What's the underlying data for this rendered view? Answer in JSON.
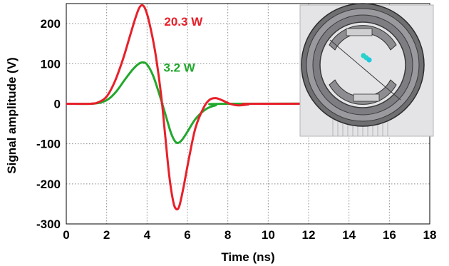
{
  "chart_data": {
    "type": "line",
    "title": "",
    "xlabel": "Time (ns)",
    "ylabel": "Signal amplitude (V)",
    "xlim": [
      0,
      18
    ],
    "ylim": [
      -300,
      250
    ],
    "xticks": [
      0,
      2,
      4,
      6,
      8,
      10,
      12,
      14,
      16,
      18
    ],
    "yticks": [
      -300,
      -200,
      -100,
      0,
      100,
      200
    ],
    "grid": true,
    "series": [
      {
        "label": "20.3 W",
        "color": "#e8202a",
        "points": [
          [
            0,
            0
          ],
          [
            1.2,
            0
          ],
          [
            1.6,
            4
          ],
          [
            2.0,
            18
          ],
          [
            2.4,
            55
          ],
          [
            2.8,
            110
          ],
          [
            3.1,
            160
          ],
          [
            3.4,
            210
          ],
          [
            3.6,
            238
          ],
          [
            3.75,
            246
          ],
          [
            3.9,
            238
          ],
          [
            4.1,
            205
          ],
          [
            4.4,
            130
          ],
          [
            4.7,
            20
          ],
          [
            4.9,
            -80
          ],
          [
            5.1,
            -180
          ],
          [
            5.3,
            -245
          ],
          [
            5.45,
            -263
          ],
          [
            5.6,
            -255
          ],
          [
            5.8,
            -210
          ],
          [
            6.1,
            -130
          ],
          [
            6.4,
            -60
          ],
          [
            6.8,
            -10
          ],
          [
            7.1,
            10
          ],
          [
            7.4,
            14
          ],
          [
            7.7,
            9
          ],
          [
            8.1,
            0
          ],
          [
            8.5,
            -4
          ],
          [
            9.0,
            -2
          ],
          [
            9.5,
            0
          ],
          [
            18,
            0
          ]
        ]
      },
      {
        "label": "3.2 W",
        "color": "#22a82c",
        "points": [
          [
            0,
            0
          ],
          [
            1.2,
            0
          ],
          [
            1.7,
            3
          ],
          [
            2.1,
            12
          ],
          [
            2.5,
            32
          ],
          [
            2.9,
            60
          ],
          [
            3.3,
            86
          ],
          [
            3.6,
            100
          ],
          [
            3.8,
            103
          ],
          [
            4.0,
            98
          ],
          [
            4.3,
            70
          ],
          [
            4.6,
            25
          ],
          [
            4.9,
            -25
          ],
          [
            5.2,
            -75
          ],
          [
            5.45,
            -97
          ],
          [
            5.7,
            -92
          ],
          [
            6.0,
            -70
          ],
          [
            6.4,
            -38
          ],
          [
            6.9,
            -14
          ],
          [
            7.4,
            -4
          ],
          [
            8.0,
            0
          ],
          [
            18,
            0
          ]
        ]
      }
    ],
    "annotations": [
      {
        "text": "20.3 W",
        "x": 5.8,
        "y": 195,
        "color": "#e8202a"
      },
      {
        "text": "3.2 W",
        "x": 5.6,
        "y": 80,
        "color": "#22a82c"
      }
    ],
    "inset": {
      "description": "3D model of concentric ring structure",
      "icon": "ring-model-icon"
    }
  }
}
